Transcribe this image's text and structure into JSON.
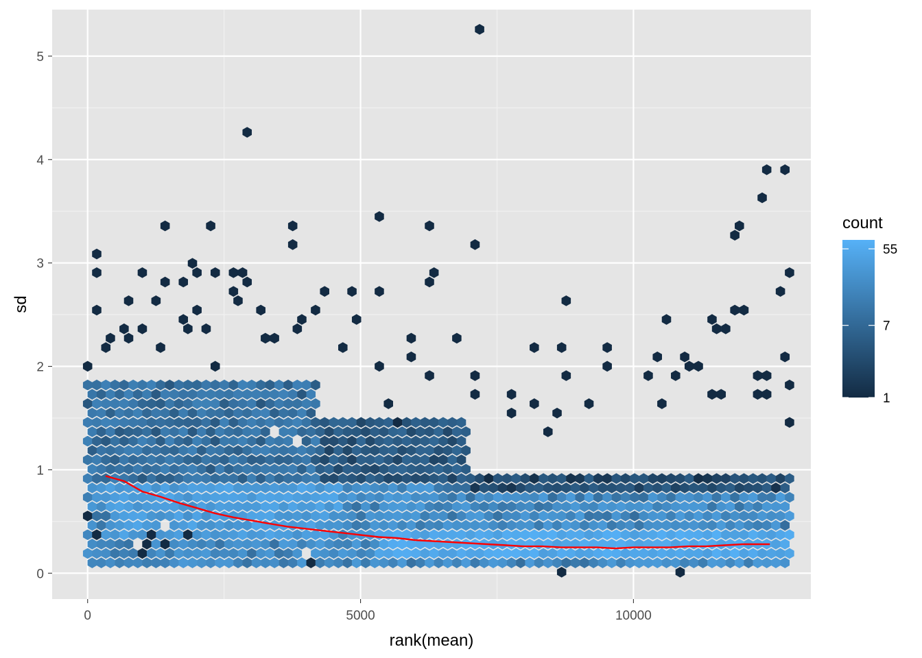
{
  "chart_data": {
    "type": "hexbin",
    "xlabel": "rank(mean)",
    "ylabel": "sd",
    "xlim": [
      -650,
      13250
    ],
    "ylim": [
      -0.25,
      5.45
    ],
    "x_ticks": [
      0,
      5000,
      10000
    ],
    "y_ticks": [
      0,
      1,
      2,
      3,
      4,
      5
    ],
    "grid": true,
    "legend": {
      "title": "count",
      "position": "right",
      "scale": "log",
      "ticks": [
        55,
        7,
        1
      ],
      "count_range": [
        1,
        70
      ],
      "colors": {
        "low": "#132B43",
        "high": "#56B1F7"
      }
    },
    "trend_line": {
      "color": "#ff0000",
      "x": [
        330,
        670,
        1000,
        1330,
        1670,
        2000,
        2330,
        2670,
        3000,
        3330,
        3670,
        4000,
        4330,
        4670,
        5000,
        5330,
        5670,
        6000,
        6330,
        6670,
        7000,
        7330,
        7670,
        8000,
        8330,
        8670,
        9000,
        9330,
        9670,
        10000,
        10330,
        10670,
        11000,
        11330,
        11670,
        12000,
        12250,
        12500
      ],
      "y": [
        0.94,
        0.89,
        0.79,
        0.74,
        0.68,
        0.63,
        0.58,
        0.54,
        0.51,
        0.48,
        0.45,
        0.43,
        0.41,
        0.39,
        0.37,
        0.35,
        0.34,
        0.32,
        0.31,
        0.3,
        0.29,
        0.28,
        0.27,
        0.26,
        0.26,
        0.25,
        0.25,
        0.25,
        0.24,
        0.25,
        0.25,
        0.25,
        0.26,
        0.26,
        0.27,
        0.28,
        0.28,
        0.28
      ]
    },
    "hex_layers": [
      {
        "x_start": 0,
        "x_end": 12900,
        "y_start": 0.08,
        "y_end": 0.9,
        "count_low": 8,
        "count_high": 35
      },
      {
        "x_start": 5300,
        "x_end": 12900,
        "y_start": 0.14,
        "y_end": 0.38,
        "count_low": 38,
        "count_high": 65
      },
      {
        "x_start": 400,
        "x_end": 4600,
        "y_start": 0.32,
        "y_end": 0.9,
        "count_low": 25,
        "count_high": 50
      },
      {
        "x_start": 0,
        "x_end": 4200,
        "y_start": 0.9,
        "y_end": 1.9,
        "count_low": 4,
        "count_high": 16
      },
      {
        "x_start": 4200,
        "x_end": 7000,
        "y_start": 0.9,
        "y_end": 1.5,
        "count_low": 2,
        "count_high": 7
      },
      {
        "x_start": 7000,
        "x_end": 12900,
        "y_start": 0.78,
        "y_end": 1.0,
        "count_low": 1,
        "count_high": 5
      }
    ],
    "sparse_points": [
      [
        0,
        2.0
      ],
      [
        0,
        0.55
      ],
      [
        250,
        3.07
      ],
      [
        250,
        2.88
      ],
      [
        250,
        2.53
      ],
      [
        250,
        0.37
      ],
      [
        330,
        2.18
      ],
      [
        500,
        2.26
      ],
      [
        660,
        2.35
      ],
      [
        800,
        2.62
      ],
      [
        800,
        2.31
      ],
      [
        1000,
        2.88
      ],
      [
        1000,
        2.35
      ],
      [
        1050,
        0.19
      ],
      [
        1150,
        0.28
      ],
      [
        1150,
        0.37
      ],
      [
        1200,
        2.62
      ],
      [
        1330,
        2.18
      ],
      [
        1400,
        3.34
      ],
      [
        1400,
        2.8
      ],
      [
        1500,
        0.28
      ],
      [
        1700,
        2.8
      ],
      [
        1800,
        2.44
      ],
      [
        1850,
        2.35
      ],
      [
        1850,
        0.37
      ],
      [
        1950,
        2.97
      ],
      [
        2000,
        2.53
      ],
      [
        2050,
        2.88
      ],
      [
        2100,
        2.35
      ],
      [
        2200,
        3.34
      ],
      [
        2300,
        2.88
      ],
      [
        2400,
        2.0
      ],
      [
        2600,
        2.88
      ],
      [
        2650,
        2.71
      ],
      [
        2750,
        2.62
      ],
      [
        2870,
        2.88
      ],
      [
        2950,
        2.8
      ],
      [
        3000,
        4.24
      ],
      [
        3100,
        2.53
      ],
      [
        3200,
        2.26
      ],
      [
        3500,
        2.26
      ],
      [
        3700,
        3.34
      ],
      [
        3700,
        3.16
      ],
      [
        3800,
        2.35
      ],
      [
        3900,
        2.44
      ],
      [
        4100,
        2.53
      ],
      [
        4100,
        0.1
      ],
      [
        4400,
        2.71
      ],
      [
        4650,
        2.18
      ],
      [
        4900,
        2.71
      ],
      [
        5000,
        2.44
      ],
      [
        5300,
        2.0
      ],
      [
        5400,
        3.43
      ],
      [
        5400,
        2.71
      ],
      [
        5450,
        1.63
      ],
      [
        5700,
        1.45
      ],
      [
        6000,
        2.26
      ],
      [
        6000,
        2.08
      ],
      [
        6200,
        1.9
      ],
      [
        6300,
        3.34
      ],
      [
        6300,
        2.8
      ],
      [
        6400,
        2.88
      ],
      [
        6800,
        2.26
      ],
      [
        7100,
        3.16
      ],
      [
        7100,
        1.9
      ],
      [
        7100,
        1.72
      ],
      [
        7200,
        5.24
      ],
      [
        7700,
        1.72
      ],
      [
        7700,
        1.54
      ],
      [
        8200,
        2.18
      ],
      [
        8200,
        1.63
      ],
      [
        8500,
        1.36
      ],
      [
        8600,
        1.54
      ],
      [
        8750,
        2.18
      ],
      [
        8800,
        2.62
      ],
      [
        8800,
        1.9
      ],
      [
        8750,
        0.01
      ],
      [
        9200,
        1.63
      ],
      [
        9600,
        2.18
      ],
      [
        9600,
        2.0
      ],
      [
        10200,
        1.9
      ],
      [
        10400,
        2.08
      ],
      [
        10500,
        1.63
      ],
      [
        10600,
        2.44
      ],
      [
        10700,
        1.9
      ],
      [
        10800,
        0.01
      ],
      [
        10900,
        2.08
      ],
      [
        11000,
        2.0
      ],
      [
        11200,
        2.0
      ],
      [
        11400,
        2.44
      ],
      [
        11400,
        1.72
      ],
      [
        11500,
        2.35
      ],
      [
        11600,
        1.72
      ],
      [
        11700,
        2.35
      ],
      [
        11800,
        3.25
      ],
      [
        11800,
        2.53
      ],
      [
        11900,
        3.34
      ],
      [
        12100,
        2.53
      ],
      [
        12200,
        1.9
      ],
      [
        12200,
        1.72
      ],
      [
        12400,
        3.61
      ],
      [
        12500,
        3.88
      ],
      [
        12500,
        1.9
      ],
      [
        12500,
        1.72
      ],
      [
        12700,
        2.71
      ],
      [
        12800,
        3.88
      ],
      [
        12800,
        2.08
      ],
      [
        12900,
        2.88
      ],
      [
        12900,
        1.81
      ],
      [
        12900,
        1.45
      ]
    ],
    "holes": [
      [
        1000,
        0.28
      ],
      [
        1400,
        0.46
      ],
      [
        3500,
        1.36
      ],
      [
        3800,
        1.27
      ],
      [
        2450,
        2.0
      ],
      [
        4000,
        0.19
      ]
    ]
  }
}
